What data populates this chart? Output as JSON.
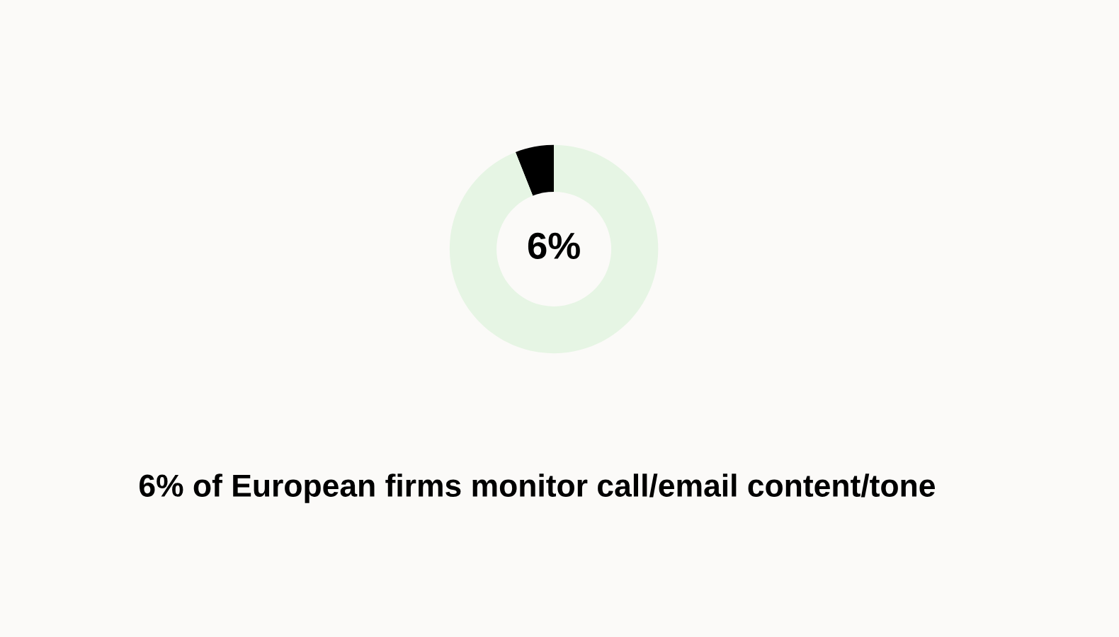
{
  "chart_data": {
    "type": "donut",
    "title": "6% of European firms monitor call/email content/tone",
    "categories": [
      null,
      null
    ],
    "values": [
      6,
      94
    ],
    "colors": [
      "#000000",
      "#e6f5e4"
    ],
    "annotations": [
      "6%"
    ]
  }
}
